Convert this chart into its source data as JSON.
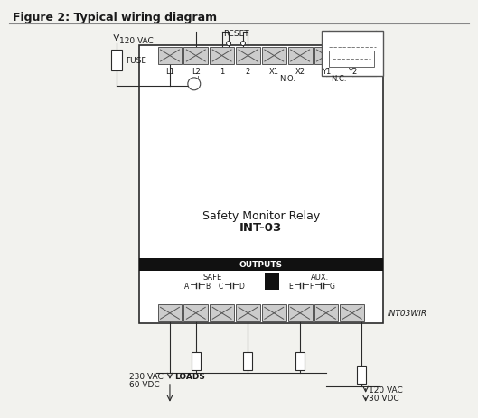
{
  "title": "Figure 2: Typical wiring diagram",
  "bg_color": "#f2f2ee",
  "device_label_line1": "Safety Monitor Relay",
  "device_label_line2": "INT-03",
  "model_label": "INT03WIR",
  "outputs_label": "OUTPUTS",
  "safe_label": "SAFE",
  "aux_label": "AUX.",
  "vac_top_label": "120 VAC",
  "fuse_label": "FUSE",
  "reset_label": "RESET",
  "vac_bot_left_label1": "230 VAC",
  "vac_bot_left_label2": "60 VDC",
  "loads_label": "LOADS",
  "vac_bot_right_label1": "120 VAC",
  "vac_bot_right_label2": "30 VDC",
  "line_color": "#2a2a2a",
  "text_color": "#1a1a1a",
  "terminal_fill": "#d8d8d8",
  "device_fill": "#ffffff",
  "black_fill": "#000000"
}
